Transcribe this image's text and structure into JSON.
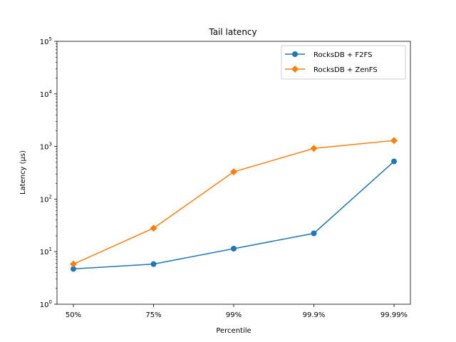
{
  "chart_data": {
    "type": "line",
    "title": "Tail latency",
    "xlabel": "Percentile",
    "ylabel": "Latency (µs)",
    "yscale": "log",
    "ylim": [
      1,
      100000
    ],
    "grid": false,
    "legend_position": "top-right",
    "categories": [
      "50%",
      "75%",
      "99%",
      "99.9%",
      "99.99%"
    ],
    "y_ticks": [
      {
        "base": "10",
        "exp": "0",
        "value": 1
      },
      {
        "base": "10",
        "exp": "1",
        "value": 10
      },
      {
        "base": "10",
        "exp": "2",
        "value": 100
      },
      {
        "base": "10",
        "exp": "3",
        "value": 1000
      },
      {
        "base": "10",
        "exp": "4",
        "value": 10000
      },
      {
        "base": "10",
        "exp": "5",
        "value": 100000
      }
    ],
    "series": [
      {
        "name": "RocksDB + F2FS",
        "color": "#1f77b4",
        "marker": "circle",
        "values": [
          4.7,
          5.8,
          11.4,
          22.3,
          520
        ]
      },
      {
        "name": "RocksDB + ZenFS",
        "color": "#ff7f0e",
        "marker": "diamond",
        "values": [
          5.8,
          28,
          330,
          920,
          1300
        ]
      }
    ]
  }
}
